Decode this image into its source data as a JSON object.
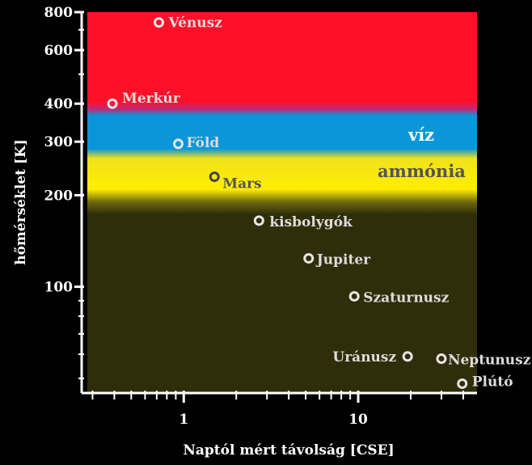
{
  "chart_data": {
    "type": "scatter",
    "xlabel": "Naptól mért távolság [CSE]",
    "ylabel": "hőmérséklet [K]",
    "x_scale": "log",
    "y_scale": "log",
    "xlim": [
      0.28,
      48
    ],
    "ylim": [
      45,
      800
    ],
    "x_ticks": [
      1,
      10
    ],
    "y_ticks": [
      100,
      200,
      300,
      400,
      600,
      800
    ],
    "bands": [
      {
        "label": "",
        "y_range": [
          370,
          800
        ],
        "color": "#ff1028"
      },
      {
        "label": "víz",
        "y_range": [
          265,
          345
        ],
        "color": "#0a96d8"
      },
      {
        "label": "ammónia",
        "y_range": [
          190,
          250
        ],
        "color": "#ffee00"
      },
      {
        "label": "",
        "y_range": [
          45,
          175
        ],
        "color": "#302e0a"
      }
    ],
    "points": [
      {
        "name": "Vénusz",
        "x": 0.72,
        "y": 740
      },
      {
        "name": "Merkúr",
        "x": 0.39,
        "y": 400
      },
      {
        "name": "Föld",
        "x": 0.93,
        "y": 295
      },
      {
        "name": "Mars",
        "x": 1.5,
        "y": 230
      },
      {
        "name": "kisbolygók",
        "x": 2.7,
        "y": 165
      },
      {
        "name": "Jupiter",
        "x": 5.2,
        "y": 124
      },
      {
        "name": "Szaturnusz",
        "x": 9.5,
        "y": 93
      },
      {
        "name": "Uránusz",
        "x": 19.2,
        "y": 59
      },
      {
        "name": "Neptunusz",
        "x": 30,
        "y": 58
      },
      {
        "name": "Plútó",
        "x": 39.5,
        "y": 48
      }
    ],
    "colors": {
      "label_light": "#dcdcdc",
      "label_dark": "#555555",
      "marker": "#e6e6e6"
    }
  }
}
